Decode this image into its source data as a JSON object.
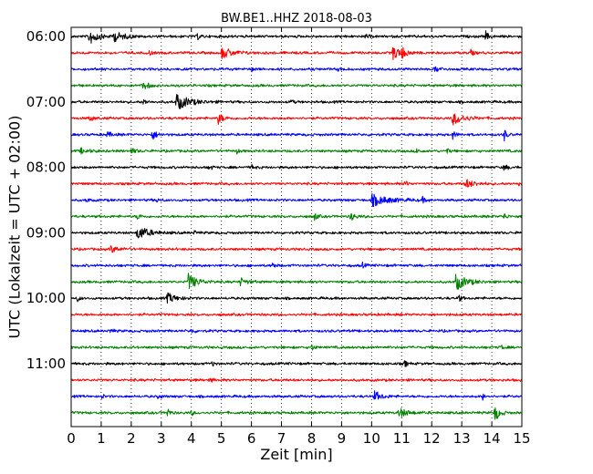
{
  "chart_data": {
    "type": "line",
    "title": "BW.BE1..HHZ 2018-08-03",
    "xlabel": "Zeit  [min]",
    "ylabel": "UTC (Lokalzeit = UTC + 02:00)",
    "xlim": [
      0,
      15
    ],
    "x_ticks": [
      "0",
      "1",
      "2",
      "3",
      "4",
      "5",
      "6",
      "7",
      "8",
      "9",
      "10",
      "11",
      "12",
      "13",
      "14",
      "15"
    ],
    "y_tick_labels": [
      "06:00",
      "07:00",
      "08:00",
      "09:00",
      "10:00",
      "11:00"
    ],
    "grid": "vertical-dotted",
    "series_colors": [
      "#000000",
      "#ff0000",
      "#0000ff",
      "#008000"
    ],
    "traces": [
      {
        "start": "06:00",
        "color": "#000000",
        "events": [
          {
            "t": 0.6,
            "amp": 1.0,
            "dur": 0.4
          },
          {
            "t": 1.4,
            "amp": 0.6,
            "dur": 0.5
          },
          {
            "t": 4.2,
            "amp": 0.4,
            "dur": 0.1
          },
          {
            "t": 9.8,
            "amp": 0.3,
            "dur": 0.1
          },
          {
            "t": 13.8,
            "amp": 0.6,
            "dur": 0.1
          }
        ]
      },
      {
        "start": "06:15",
        "color": "#ff0000",
        "events": [
          {
            "t": 2.6,
            "amp": 0.3,
            "dur": 0.1
          },
          {
            "t": 5.0,
            "amp": 0.7,
            "dur": 0.5
          },
          {
            "t": 10.7,
            "amp": 0.8,
            "dur": 0.4
          },
          {
            "t": 11.0,
            "amp": 0.5,
            "dur": 0.2
          },
          {
            "t": 13.3,
            "amp": 0.4,
            "dur": 0.1
          }
        ]
      },
      {
        "start": "06:30",
        "color": "#0000ff",
        "events": [
          {
            "t": 6.0,
            "amp": 0.3,
            "dur": 0.1
          },
          {
            "t": 8.9,
            "amp": 0.3,
            "dur": 0.1
          },
          {
            "t": 12.1,
            "amp": 0.4,
            "dur": 0.2
          }
        ]
      },
      {
        "start": "06:45",
        "color": "#008000",
        "events": [
          {
            "t": 2.4,
            "amp": 0.6,
            "dur": 0.2
          }
        ]
      },
      {
        "start": "07:00",
        "color": "#000000",
        "events": [
          {
            "t": 2.4,
            "amp": 0.4,
            "dur": 0.1
          },
          {
            "t": 3.5,
            "amp": 1.0,
            "dur": 0.6
          },
          {
            "t": 7.3,
            "amp": 0.3,
            "dur": 0.1
          }
        ]
      },
      {
        "start": "07:15",
        "color": "#ff0000",
        "events": [
          {
            "t": 0.6,
            "amp": 0.3,
            "dur": 0.2
          },
          {
            "t": 4.9,
            "amp": 0.7,
            "dur": 0.2
          },
          {
            "t": 12.7,
            "amp": 0.8,
            "dur": 0.5
          }
        ]
      },
      {
        "start": "07:30",
        "color": "#0000ff",
        "events": [
          {
            "t": 1.2,
            "amp": 0.3,
            "dur": 0.2
          },
          {
            "t": 2.7,
            "amp": 0.6,
            "dur": 0.2
          },
          {
            "t": 12.7,
            "amp": 0.5,
            "dur": 0.1
          },
          {
            "t": 14.4,
            "amp": 0.8,
            "dur": 0.1
          }
        ]
      },
      {
        "start": "07:45",
        "color": "#008000",
        "events": [
          {
            "t": 0.3,
            "amp": 0.3,
            "dur": 0.4
          },
          {
            "t": 2.0,
            "amp": 0.3,
            "dur": 0.2
          },
          {
            "t": 5.5,
            "amp": 0.3,
            "dur": 0.1
          },
          {
            "t": 11.5,
            "amp": 0.3,
            "dur": 0.1
          },
          {
            "t": 12.5,
            "amp": 0.3,
            "dur": 0.1
          }
        ]
      },
      {
        "start": "08:00",
        "color": "#000000",
        "events": [
          {
            "t": 4.6,
            "amp": 0.4,
            "dur": 0.1
          },
          {
            "t": 6.0,
            "amp": 0.3,
            "dur": 0.1
          },
          {
            "t": 14.4,
            "amp": 0.3,
            "dur": 0.2
          }
        ]
      },
      {
        "start": "08:15",
        "color": "#ff0000",
        "events": [
          {
            "t": 11.1,
            "amp": 0.4,
            "dur": 0.1
          },
          {
            "t": 13.1,
            "amp": 0.6,
            "dur": 0.4
          },
          {
            "t": 14.9,
            "amp": 0.3,
            "dur": 0.1
          }
        ]
      },
      {
        "start": "08:30",
        "color": "#0000ff",
        "events": [
          {
            "t": 0.5,
            "amp": 0.3,
            "dur": 0.1
          },
          {
            "t": 2.8,
            "amp": 0.2,
            "dur": 0.2
          },
          {
            "t": 10.0,
            "amp": 0.7,
            "dur": 0.8
          },
          {
            "t": 11.7,
            "amp": 0.3,
            "dur": 0.1
          }
        ]
      },
      {
        "start": "08:45",
        "color": "#008000",
        "events": [
          {
            "t": 2.2,
            "amp": 0.4,
            "dur": 0.1
          },
          {
            "t": 8.1,
            "amp": 0.5,
            "dur": 0.1
          },
          {
            "t": 9.3,
            "amp": 0.5,
            "dur": 0.2
          },
          {
            "t": 14.4,
            "amp": 0.4,
            "dur": 0.1
          }
        ]
      },
      {
        "start": "09:00",
        "color": "#000000",
        "events": [
          {
            "t": 2.2,
            "amp": 0.9,
            "dur": 0.5
          },
          {
            "t": 4.1,
            "amp": 0.2,
            "dur": 0.1
          }
        ]
      },
      {
        "start": "09:15",
        "color": "#ff0000",
        "events": [
          {
            "t": 1.3,
            "amp": 0.4,
            "dur": 0.4
          }
        ]
      },
      {
        "start": "09:30",
        "color": "#0000ff",
        "events": [
          {
            "t": 6.7,
            "amp": 0.4,
            "dur": 0.1
          },
          {
            "t": 9.7,
            "amp": 0.3,
            "dur": 0.1
          }
        ]
      },
      {
        "start": "09:45",
        "color": "#008000",
        "events": [
          {
            "t": 3.9,
            "amp": 1.0,
            "dur": 0.4
          },
          {
            "t": 5.6,
            "amp": 0.5,
            "dur": 0.3
          },
          {
            "t": 12.8,
            "amp": 1.0,
            "dur": 0.5
          }
        ]
      },
      {
        "start": "10:00",
        "color": "#000000",
        "events": [
          {
            "t": 0.2,
            "amp": 0.4,
            "dur": 0.1
          },
          {
            "t": 3.2,
            "amp": 0.6,
            "dur": 0.4
          },
          {
            "t": 12.9,
            "amp": 0.4,
            "dur": 0.1
          }
        ]
      },
      {
        "start": "10:15",
        "color": "#ff0000",
        "events": []
      },
      {
        "start": "10:30",
        "color": "#0000ff",
        "events": [
          {
            "t": 1.3,
            "amp": 0.3,
            "dur": 0.1
          },
          {
            "t": 4.0,
            "amp": 0.3,
            "dur": 0.1
          }
        ]
      },
      {
        "start": "10:45",
        "color": "#008000",
        "events": [
          {
            "t": 8.0,
            "amp": 0.4,
            "dur": 0.1
          },
          {
            "t": 14.3,
            "amp": 0.3,
            "dur": 0.1
          }
        ]
      },
      {
        "start": "11:00",
        "color": "#000000",
        "events": [
          {
            "t": 4.7,
            "amp": 0.3,
            "dur": 0.1
          },
          {
            "t": 11.1,
            "amp": 0.4,
            "dur": 0.1
          }
        ]
      },
      {
        "start": "11:15",
        "color": "#ff0000",
        "events": [
          {
            "t": 4.6,
            "amp": 0.3,
            "dur": 0.1
          }
        ]
      },
      {
        "start": "11:30",
        "color": "#0000ff",
        "events": [
          {
            "t": 1.0,
            "amp": 0.3,
            "dur": 0.1
          },
          {
            "t": 2.9,
            "amp": 0.3,
            "dur": 0.1
          },
          {
            "t": 10.1,
            "amp": 0.6,
            "dur": 0.3
          },
          {
            "t": 13.7,
            "amp": 0.4,
            "dur": 0.1
          }
        ]
      },
      {
        "start": "11:45",
        "color": "#008000",
        "events": [
          {
            "t": 3.2,
            "amp": 0.6,
            "dur": 0.1
          },
          {
            "t": 4.0,
            "amp": 0.3,
            "dur": 0.1
          },
          {
            "t": 10.9,
            "amp": 0.6,
            "dur": 0.4
          },
          {
            "t": 14.1,
            "amp": 1.0,
            "dur": 0.2
          }
        ]
      }
    ]
  }
}
